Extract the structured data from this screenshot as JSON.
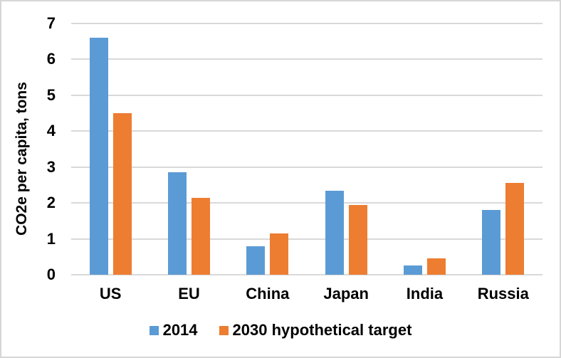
{
  "chart_data": {
    "type": "bar",
    "title": "",
    "xlabel": "",
    "ylabel": "CO2e per capita, tons",
    "categories": [
      "US",
      "EU",
      "China",
      "Japan",
      "India",
      "Russia"
    ],
    "series": [
      {
        "name": "2014",
        "color": "#5B9BD5",
        "values": [
          6.6,
          2.85,
          0.8,
          2.35,
          0.25,
          1.8
        ]
      },
      {
        "name": "2030 hypothetical target",
        "color": "#ED7D31",
        "values": [
          4.5,
          2.15,
          1.15,
          1.95,
          0.45,
          2.55
        ]
      }
    ],
    "ylim": [
      0,
      7
    ],
    "yticks": [
      0,
      1,
      2,
      3,
      4,
      5,
      6,
      7
    ],
    "grid": true,
    "gridline_color": "#D9D9D9",
    "legend_position": "bottom"
  },
  "colors": {
    "background": "#FFFFFF",
    "frame_border": "#D6D6D6",
    "text": "#000000"
  }
}
